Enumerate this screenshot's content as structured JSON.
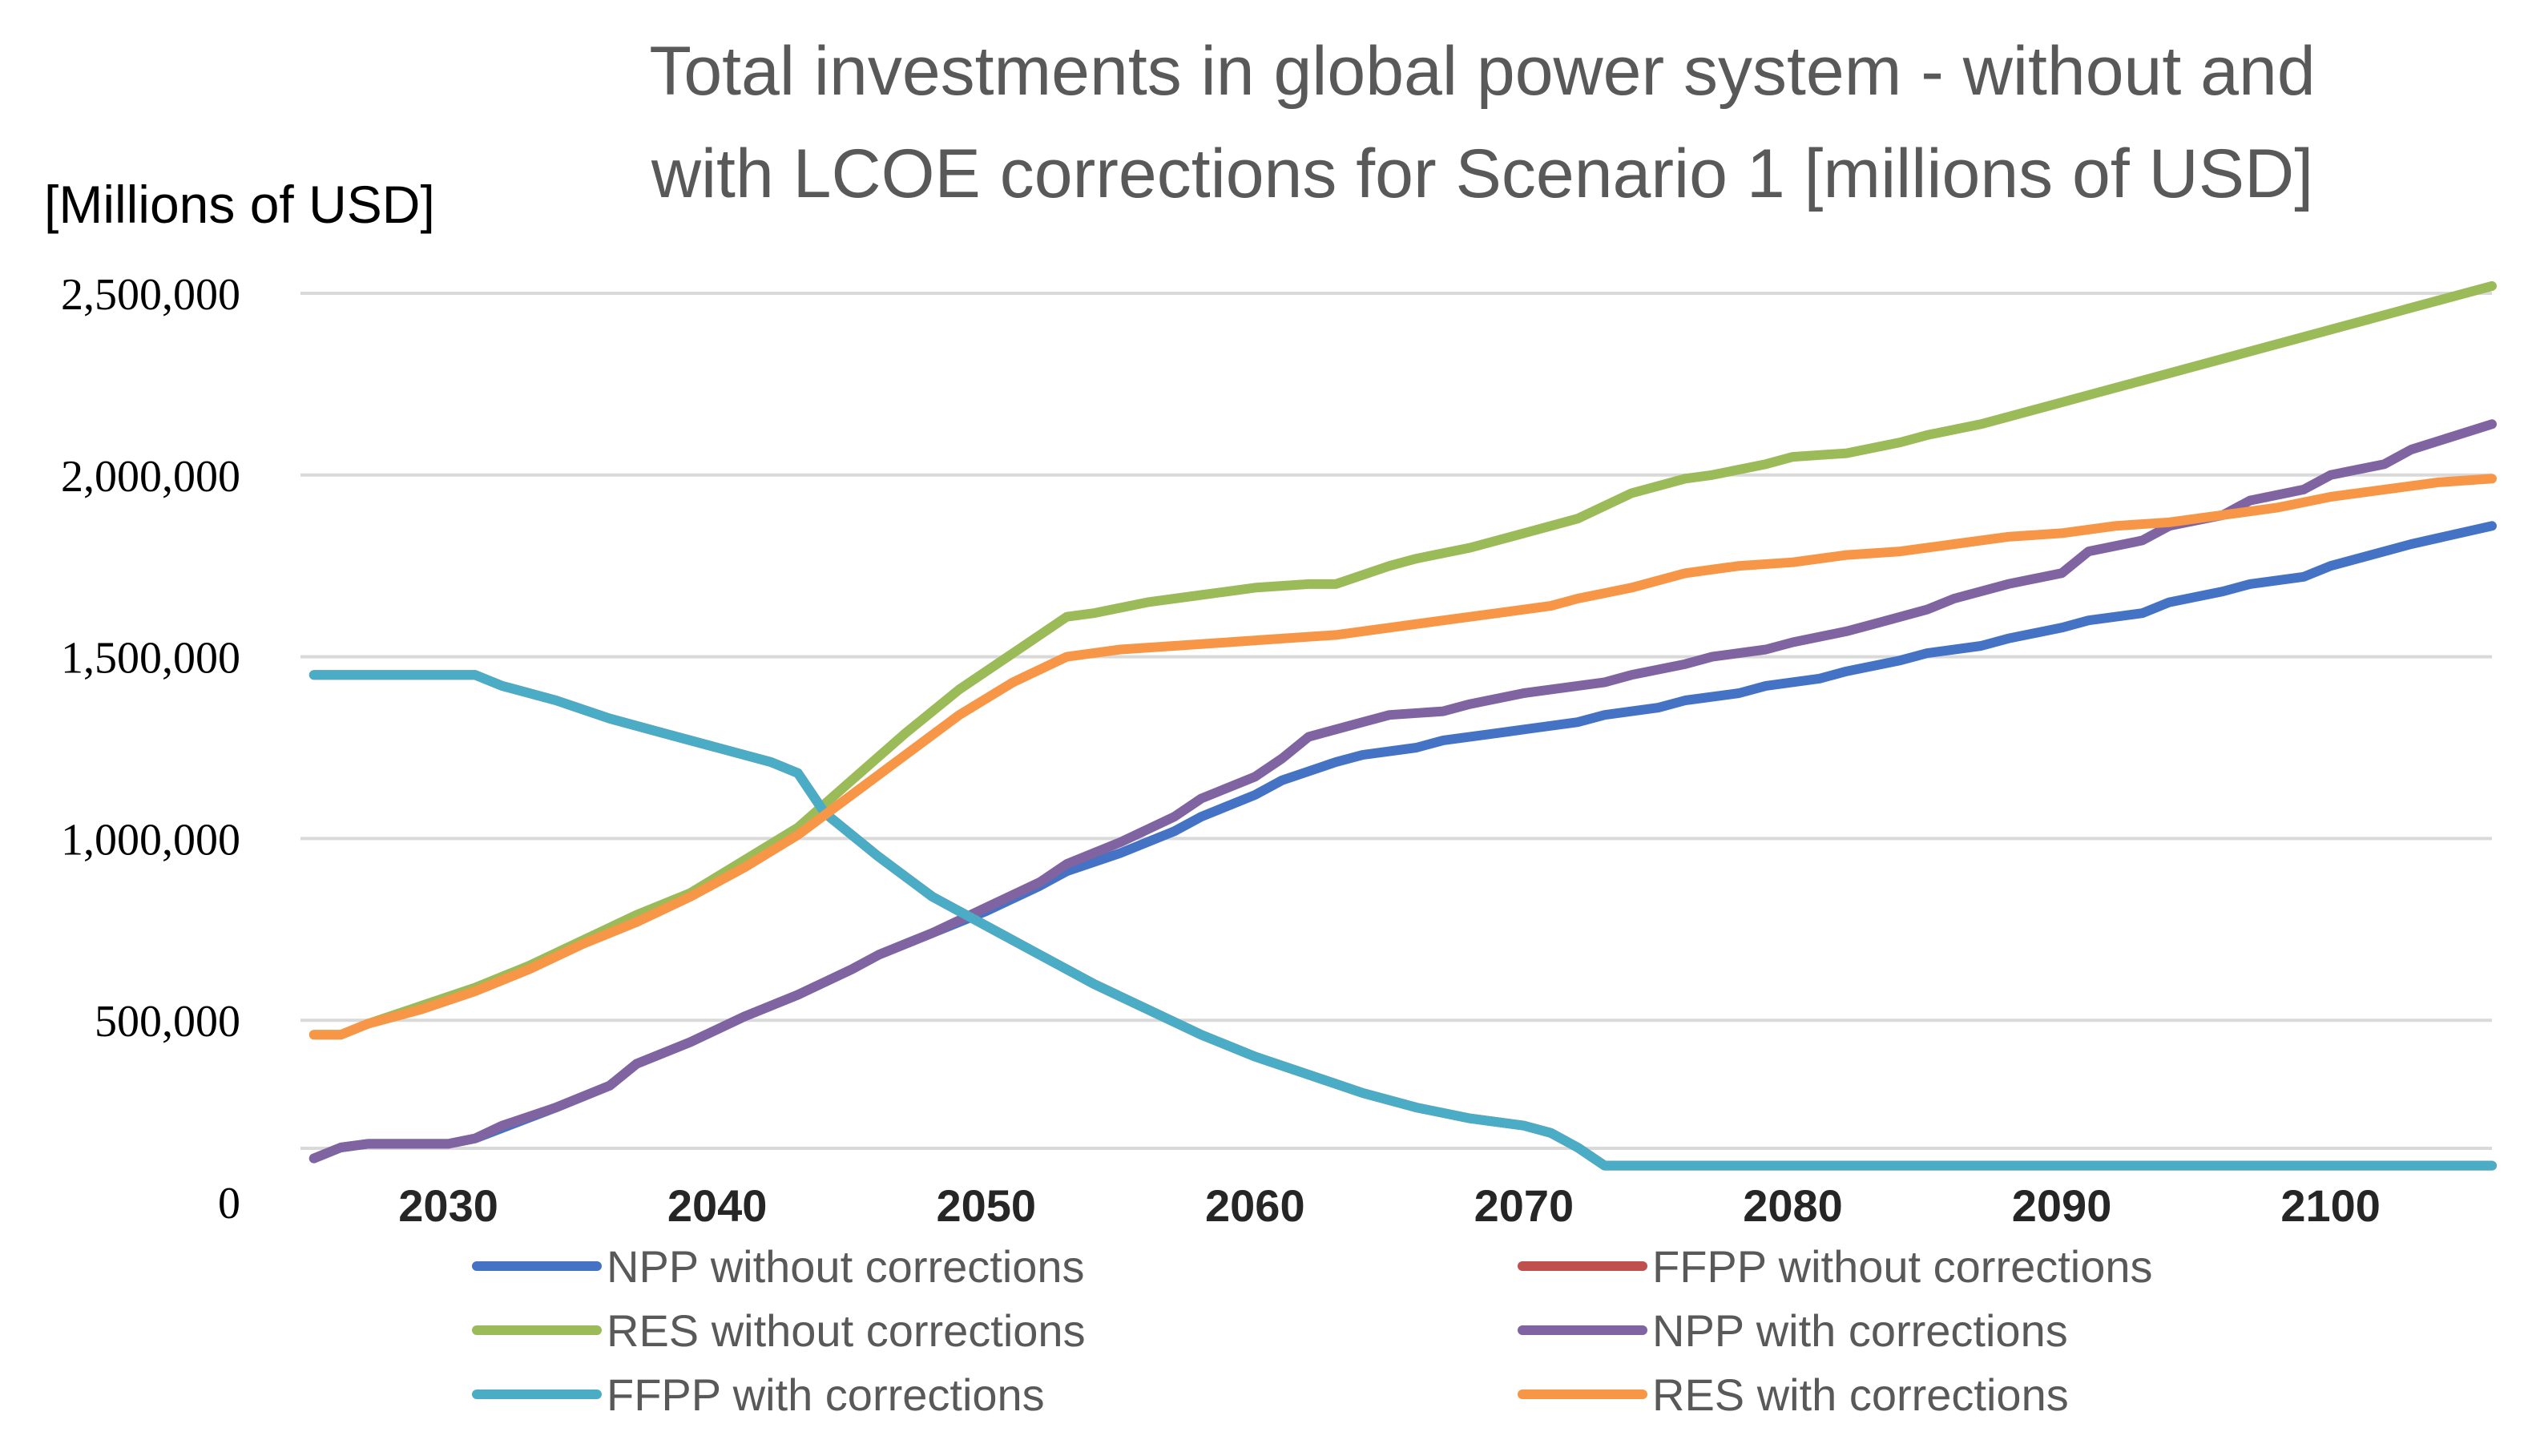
{
  "chart_data": {
    "type": "line",
    "title_lines": [
      "Total investments in global power system  - without and",
      "with LCOE corrections for Scenario 1 [millions of USD]"
    ],
    "ylabel": "[Millions of USD]",
    "xlabel": "",
    "ylim": [
      0,
      2500000
    ],
    "xlim": [
      2024.5,
      2106
    ],
    "yticks": [
      0,
      500000,
      1000000,
      1500000,
      2000000,
      2500000
    ],
    "ytick_labels": [
      "0",
      "500,000",
      "1,000,000",
      "1,500,000",
      "2,000,000",
      "2,500,000"
    ],
    "xticks": [
      2030,
      2040,
      2050,
      2060,
      2070,
      2080,
      2090,
      2100
    ],
    "xtick_labels": [
      "2030",
      "2040",
      "2050",
      "2060",
      "2070",
      "2080",
      "2090",
      "2100"
    ],
    "grid": "horizontal",
    "legend_position": "bottom",
    "series": [
      {
        "name": "NPP without corrections",
        "color": "#4472C4",
        "x": [
          2025,
          2026,
          2027,
          2028,
          2030,
          2031,
          2034,
          2036,
          2037,
          2039,
          2041,
          2043,
          2045,
          2046,
          2048,
          2050,
          2052,
          2053,
          2055,
          2057,
          2058,
          2060,
          2061,
          2063,
          2064,
          2066,
          2067,
          2069,
          2070,
          2072,
          2073,
          2075,
          2076,
          2078,
          2079,
          2081,
          2082,
          2084,
          2085,
          2087,
          2088,
          2090,
          2091,
          2093,
          2094,
          2096,
          2097,
          2099,
          2100,
          2102,
          2103,
          2106
        ],
        "y": [
          120000,
          150000,
          160000,
          160000,
          160000,
          175000,
          260000,
          320000,
          380000,
          440000,
          510000,
          570000,
          640000,
          680000,
          740000,
          800000,
          870000,
          910000,
          960000,
          1020000,
          1060000,
          1120000,
          1160000,
          1210000,
          1230000,
          1250000,
          1270000,
          1290000,
          1300000,
          1320000,
          1340000,
          1360000,
          1380000,
          1400000,
          1420000,
          1440000,
          1460000,
          1490000,
          1510000,
          1530000,
          1550000,
          1580000,
          1600000,
          1620000,
          1650000,
          1680000,
          1700000,
          1720000,
          1750000,
          1790000,
          1810000,
          1860000
        ]
      },
      {
        "name": "FFPP without corrections",
        "color": "#C0504D",
        "x": [
          2025,
          2030,
          2031,
          2032,
          2034,
          2036,
          2038,
          2040,
          2042,
          2043,
          2044,
          2046,
          2048,
          2050,
          2052,
          2054,
          2056,
          2058,
          2060,
          2062,
          2064,
          2066,
          2068,
          2070,
          2071,
          2072,
          2073,
          2080,
          2090,
          2100,
          2106
        ],
        "y": [
          1450000,
          1450000,
          1450000,
          1420000,
          1380000,
          1330000,
          1290000,
          1250000,
          1210000,
          1180000,
          1070000,
          950000,
          840000,
          760000,
          680000,
          600000,
          530000,
          460000,
          400000,
          350000,
          300000,
          260000,
          230000,
          210000,
          190000,
          150000,
          100000,
          100000,
          100000,
          100000,
          100000
        ]
      },
      {
        "name": "RES without corrections",
        "color": "#9BBB59",
        "x": [
          2025,
          2026,
          2027,
          2029,
          2031,
          2033,
          2035,
          2037,
          2039,
          2041,
          2043,
          2045,
          2047,
          2049,
          2051,
          2053,
          2054,
          2056,
          2058,
          2060,
          2062,
          2063,
          2065,
          2066,
          2068,
          2070,
          2071,
          2072,
          2074,
          2076,
          2077,
          2079,
          2080,
          2082,
          2084,
          2085,
          2087,
          2089,
          2091,
          2093,
          2095,
          2097,
          2099,
          2101,
          2103,
          2106
        ],
        "y": [
          460000,
          460000,
          490000,
          540000,
          590000,
          650000,
          720000,
          790000,
          850000,
          940000,
          1030000,
          1160000,
          1290000,
          1410000,
          1510000,
          1610000,
          1620000,
          1650000,
          1670000,
          1690000,
          1700000,
          1700000,
          1750000,
          1770000,
          1800000,
          1840000,
          1860000,
          1880000,
          1950000,
          1990000,
          2000000,
          2030000,
          2050000,
          2060000,
          2090000,
          2110000,
          2140000,
          2180000,
          2220000,
          2260000,
          2300000,
          2340000,
          2380000,
          2420000,
          2460000,
          2520000
        ]
      },
      {
        "name": "NPP with corrections",
        "color": "#8064A2",
        "x": [
          2025,
          2026,
          2027,
          2028,
          2030,
          2031,
          2032,
          2034,
          2036,
          2037,
          2039,
          2041,
          2043,
          2045,
          2046,
          2048,
          2050,
          2052,
          2053,
          2055,
          2057,
          2058,
          2060,
          2061,
          2062,
          2064,
          2065,
          2067,
          2068,
          2070,
          2071,
          2073,
          2074,
          2076,
          2077,
          2079,
          2080,
          2082,
          2083,
          2085,
          2086,
          2088,
          2090,
          2091,
          2093,
          2094,
          2096,
          2097,
          2099,
          2100,
          2102,
          2103,
          2106
        ],
        "y": [
          120000,
          150000,
          160000,
          160000,
          160000,
          175000,
          210000,
          260000,
          320000,
          380000,
          440000,
          510000,
          570000,
          640000,
          680000,
          740000,
          810000,
          880000,
          930000,
          990000,
          1060000,
          1110000,
          1170000,
          1220000,
          1280000,
          1320000,
          1340000,
          1350000,
          1370000,
          1400000,
          1410000,
          1430000,
          1450000,
          1480000,
          1500000,
          1520000,
          1540000,
          1570000,
          1590000,
          1630000,
          1660000,
          1700000,
          1730000,
          1790000,
          1820000,
          1860000,
          1890000,
          1930000,
          1960000,
          2000000,
          2030000,
          2070000,
          2140000
        ]
      },
      {
        "name": "FFPP with corrections",
        "color": "#4BACC6",
        "x": [
          2025,
          2030,
          2031,
          2032,
          2034,
          2036,
          2038,
          2040,
          2042,
          2043,
          2044,
          2046,
          2048,
          2050,
          2052,
          2054,
          2056,
          2058,
          2060,
          2062,
          2064,
          2066,
          2068,
          2070,
          2071,
          2072,
          2073,
          2080,
          2090,
          2100,
          2106
        ],
        "y": [
          1450000,
          1450000,
          1450000,
          1420000,
          1380000,
          1330000,
          1290000,
          1250000,
          1210000,
          1180000,
          1070000,
          950000,
          840000,
          760000,
          680000,
          600000,
          530000,
          460000,
          400000,
          350000,
          300000,
          260000,
          230000,
          210000,
          190000,
          150000,
          100000,
          100000,
          100000,
          100000,
          100000
        ]
      },
      {
        "name": "RES with corrections",
        "color": "#F79646",
        "x": [
          2025,
          2026,
          2027,
          2029,
          2031,
          2033,
          2035,
          2037,
          2039,
          2041,
          2043,
          2045,
          2047,
          2049,
          2051,
          2053,
          2055,
          2057,
          2059,
          2061,
          2063,
          2065,
          2067,
          2069,
          2071,
          2072,
          2074,
          2076,
          2078,
          2080,
          2082,
          2084,
          2086,
          2088,
          2090,
          2092,
          2094,
          2096,
          2098,
          2100,
          2102,
          2104,
          2106
        ],
        "y": [
          460000,
          460000,
          490000,
          530000,
          580000,
          640000,
          710000,
          770000,
          840000,
          920000,
          1010000,
          1120000,
          1230000,
          1340000,
          1430000,
          1500000,
          1520000,
          1530000,
          1540000,
          1550000,
          1560000,
          1580000,
          1600000,
          1620000,
          1640000,
          1660000,
          1690000,
          1730000,
          1750000,
          1760000,
          1780000,
          1790000,
          1810000,
          1830000,
          1840000,
          1860000,
          1870000,
          1890000,
          1910000,
          1940000,
          1960000,
          1980000,
          1990000
        ]
      }
    ]
  }
}
